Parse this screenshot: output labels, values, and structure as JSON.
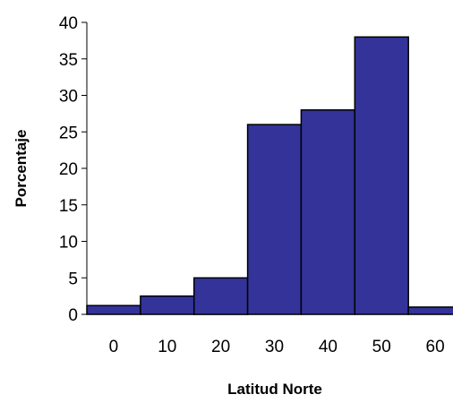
{
  "chart_data": {
    "type": "bar",
    "xlabel": "Latitud Norte",
    "ylabel": "Porcentaje",
    "categories": [
      "0",
      "10",
      "20",
      "30",
      "40",
      "50",
      "60"
    ],
    "values": [
      1.2,
      2.5,
      5,
      26,
      28,
      38,
      1
    ],
    "ylim": [
      0,
      40
    ],
    "y_ticks": [
      "0",
      "5",
      "10",
      "15",
      "20",
      "25",
      "30",
      "35",
      "40"
    ],
    "grid": false,
    "legend": "none",
    "bar_color": "#333399",
    "bar_edge_color": "#000000",
    "bar_gap": 0
  }
}
